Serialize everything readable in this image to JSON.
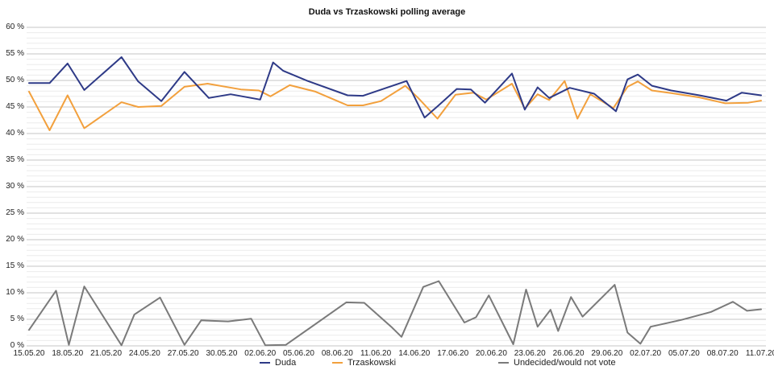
{
  "chart_data": {
    "type": "line",
    "title": "Duda vs Trzaskowski polling average",
    "xlabel": "",
    "ylabel": "",
    "ylim": [
      0,
      60
    ],
    "y_tick_step": 5,
    "y_tick_labels": [
      "60 %",
      "55 %",
      "50 %",
      "45 %",
      "40 %",
      "35 %",
      "30 %",
      "25 %",
      "20 %",
      "15 %",
      "10 %",
      "5 %",
      "0 %"
    ],
    "x_tick_labels": [
      "15.05.20",
      "18.05.20",
      "21.05.20",
      "24.05.20",
      "27.05.20",
      "30.05.20",
      "02.06.20",
      "05.06.20",
      "08.06.20",
      "11.06.20",
      "14.06.20",
      "17.06.20",
      "20.06.20",
      "23.06.20",
      "26.06.20",
      "29.06.20",
      "02.07.20",
      "05.07.20",
      "08.07.20",
      "11.07.20"
    ],
    "x_tick_day_step": 3,
    "x_range_days": [
      0,
      57
    ],
    "grid": {
      "minor_step_pct": 1,
      "major_step_pct": 5,
      "minor_color": "#ebebeb",
      "major_color": "#c6c6c6"
    },
    "legend_position": "bottom",
    "series": [
      {
        "name": "Undecided/would not vote",
        "color": "#7a7a7a",
        "points": [
          [
            0,
            3.0
          ],
          [
            2.1,
            10.4
          ],
          [
            3.1,
            0.2
          ],
          [
            4.3,
            11.2
          ],
          [
            7.2,
            0.1
          ],
          [
            8.2,
            5.9
          ],
          [
            10.2,
            9.1
          ],
          [
            12.1,
            0.2
          ],
          [
            13.4,
            4.8
          ],
          [
            15.5,
            4.6
          ],
          [
            17.3,
            5.1
          ],
          [
            18.4,
            0.1
          ],
          [
            20,
            0.2
          ],
          [
            24.7,
            8.2
          ],
          [
            26.1,
            8.1
          ],
          [
            28.2,
            3.6
          ],
          [
            29,
            1.7
          ],
          [
            30.7,
            11.1
          ],
          [
            31.9,
            12.2
          ],
          [
            33.9,
            4.4
          ],
          [
            34.8,
            5.4
          ],
          [
            35.8,
            9.5
          ],
          [
            37.7,
            0.3
          ],
          [
            38.7,
            10.6
          ],
          [
            39.6,
            3.6
          ],
          [
            40.6,
            6.8
          ],
          [
            41.2,
            2.8
          ],
          [
            42.2,
            9.2
          ],
          [
            43.1,
            5.5
          ],
          [
            45.6,
            11.5
          ],
          [
            46.6,
            2.5
          ],
          [
            47.6,
            0.4
          ],
          [
            48.4,
            3.6
          ],
          [
            50.8,
            4.9
          ],
          [
            53.1,
            6.4
          ],
          [
            54.8,
            8.3
          ],
          [
            55.9,
            6.6
          ],
          [
            57,
            6.9
          ]
        ]
      },
      {
        "name": "Trzaskowski",
        "color": "#f2a03d",
        "points": [
          [
            0,
            47.9
          ],
          [
            1.6,
            40.6
          ],
          [
            3,
            47.2
          ],
          [
            4.3,
            41.0
          ],
          [
            7.2,
            45.9
          ],
          [
            8.5,
            45.0
          ],
          [
            10.3,
            45.2
          ],
          [
            12.1,
            48.8
          ],
          [
            13.9,
            49.4
          ],
          [
            16.5,
            48.3
          ],
          [
            17.9,
            48.1
          ],
          [
            18.8,
            47.0
          ],
          [
            20.3,
            49.1
          ],
          [
            22.3,
            47.9
          ],
          [
            24.8,
            45.3
          ],
          [
            26,
            45.3
          ],
          [
            27.4,
            46.1
          ],
          [
            29.3,
            49.0
          ],
          [
            30.3,
            46.7
          ],
          [
            31.8,
            42.8
          ],
          [
            33.2,
            47.3
          ],
          [
            34.6,
            47.7
          ],
          [
            35.6,
            46.4
          ],
          [
            37.6,
            49.4
          ],
          [
            38.6,
            44.7
          ],
          [
            39.6,
            47.4
          ],
          [
            40.5,
            46.3
          ],
          [
            41.7,
            49.9
          ],
          [
            42.7,
            42.8
          ],
          [
            43.7,
            47.4
          ],
          [
            45.5,
            44.8
          ],
          [
            46.6,
            48.8
          ],
          [
            47.4,
            49.8
          ],
          [
            48.5,
            48.1
          ],
          [
            50,
            47.6
          ],
          [
            52.2,
            46.8
          ],
          [
            54.2,
            45.7
          ],
          [
            56,
            45.8
          ],
          [
            57,
            46.2
          ]
        ]
      },
      {
        "name": "Duda",
        "color": "#2e3a87",
        "points": [
          [
            0,
            49.5
          ],
          [
            1.6,
            49.5
          ],
          [
            3,
            53.2
          ],
          [
            4.3,
            48.2
          ],
          [
            7.2,
            54.4
          ],
          [
            8.5,
            49.8
          ],
          [
            10.3,
            46.1
          ],
          [
            12.1,
            51.6
          ],
          [
            14,
            46.7
          ],
          [
            15.7,
            47.4
          ],
          [
            18,
            46.4
          ],
          [
            19,
            53.4
          ],
          [
            19.8,
            51.8
          ],
          [
            21.7,
            49.9
          ],
          [
            24.8,
            47.2
          ],
          [
            26,
            47.1
          ],
          [
            29.4,
            49.9
          ],
          [
            30.8,
            43.0
          ],
          [
            31.8,
            45.1
          ],
          [
            33.3,
            48.4
          ],
          [
            34.4,
            48.3
          ],
          [
            35.5,
            45.8
          ],
          [
            37.6,
            51.3
          ],
          [
            38.6,
            44.5
          ],
          [
            39.6,
            48.7
          ],
          [
            40.5,
            46.7
          ],
          [
            42.1,
            48.6
          ],
          [
            44,
            47.5
          ],
          [
            45.7,
            44.2
          ],
          [
            46.6,
            50.2
          ],
          [
            47.4,
            51.1
          ],
          [
            48.5,
            49.0
          ],
          [
            50,
            48.1
          ],
          [
            52.2,
            47.2
          ],
          [
            54.3,
            46.2
          ],
          [
            55.5,
            47.7
          ],
          [
            57,
            47.2
          ]
        ]
      }
    ],
    "legend_order": [
      "Duda",
      "Trzaskowski",
      "Undecided/would not vote"
    ]
  }
}
